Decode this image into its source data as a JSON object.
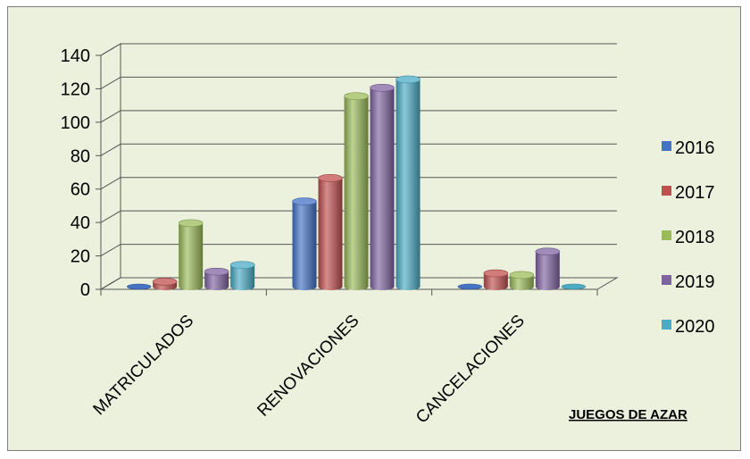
{
  "chart_data": {
    "type": "bar",
    "style": "3d-cylinder",
    "categories": [
      "MATRICULADOS",
      "RENOVACIONES",
      "CANCELACIONES"
    ],
    "series": [
      {
        "name": "2016",
        "color": "#4472c4",
        "values": [
          0,
          51,
          0
        ]
      },
      {
        "name": "2017",
        "color": "#c0504d",
        "values": [
          3,
          65,
          8
        ]
      },
      {
        "name": "2018",
        "color": "#9bbb59",
        "values": [
          38,
          114,
          7
        ]
      },
      {
        "name": "2019",
        "color": "#8064a2",
        "values": [
          9,
          119,
          21
        ]
      },
      {
        "name": "2020",
        "color": "#4bacc6",
        "values": [
          13,
          124,
          0
        ]
      }
    ],
    "ylim": [
      0,
      140
    ],
    "yticks": [
      0,
      20,
      40,
      60,
      80,
      100,
      120,
      140
    ],
    "grid": true,
    "legend": "right",
    "annotation": "JUEGOS DE AZAR",
    "background": "#ebf1dd"
  }
}
